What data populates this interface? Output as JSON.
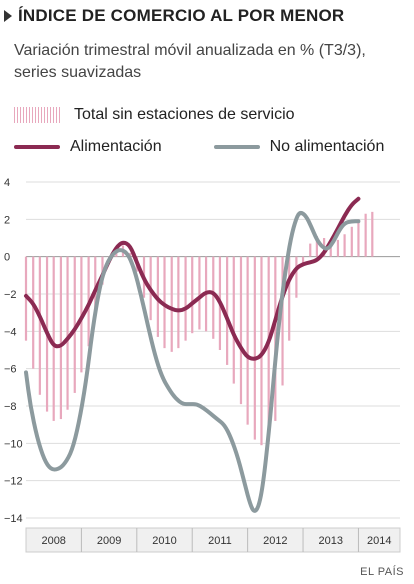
{
  "header": {
    "title": "ÍNDICE DE COMERCIO AL POR MENOR",
    "subtitle": "Variación trimestral móvil anualizada en % (T3/3), series suavizadas"
  },
  "legend": {
    "bars_label": "Total sin estaciones de servicio",
    "series1_label": "Alimentación",
    "series2_label": "No alimentación"
  },
  "source": "EL PAÍS",
  "colors": {
    "bars": "#e8a8bd",
    "alimentacion": "#8b2a52",
    "no_alimentacion": "#8c9a9e",
    "grid": "#dddddd",
    "axis_band": "#f0f0f0"
  },
  "chart_data": {
    "type": "line",
    "ylim": [
      -14,
      4
    ],
    "yticks": [
      4,
      2,
      0,
      -2,
      -4,
      -6,
      -8,
      -10,
      -12,
      -14
    ],
    "x_categories": [
      "2008",
      "2009",
      "2010",
      "2011",
      "2012",
      "2013",
      "2014"
    ],
    "xlim": [
      2008.0,
      2014.75
    ],
    "bars": {
      "name": "Total sin estaciones de servicio",
      "points": [
        [
          2008.0,
          -4.5
        ],
        [
          2008.13,
          -6.0
        ],
        [
          2008.25,
          -7.4
        ],
        [
          2008.38,
          -8.3
        ],
        [
          2008.5,
          -8.8
        ],
        [
          2008.63,
          -8.7
        ],
        [
          2008.75,
          -8.2
        ],
        [
          2008.88,
          -7.3
        ],
        [
          2009.0,
          -6.2
        ],
        [
          2009.13,
          -4.8
        ],
        [
          2009.25,
          -3.2
        ],
        [
          2009.38,
          -1.5
        ],
        [
          2009.5,
          -0.3
        ],
        [
          2009.63,
          0.4
        ],
        [
          2009.75,
          0.6
        ],
        [
          2009.88,
          0.2
        ],
        [
          2010.0,
          -0.8
        ],
        [
          2010.13,
          -2.2
        ],
        [
          2010.25,
          -3.4
        ],
        [
          2010.38,
          -4.3
        ],
        [
          2010.5,
          -4.9
        ],
        [
          2010.63,
          -5.1
        ],
        [
          2010.75,
          -4.9
        ],
        [
          2010.88,
          -4.5
        ],
        [
          2011.0,
          -4.1
        ],
        [
          2011.13,
          -3.9
        ],
        [
          2011.25,
          -4.0
        ],
        [
          2011.38,
          -4.4
        ],
        [
          2011.5,
          -5.0
        ],
        [
          2011.63,
          -5.8
        ],
        [
          2011.75,
          -6.8
        ],
        [
          2011.88,
          -7.9
        ],
        [
          2012.0,
          -9.0
        ],
        [
          2012.13,
          -9.8
        ],
        [
          2012.25,
          -10.1
        ],
        [
          2012.38,
          -9.9
        ],
        [
          2012.5,
          -8.8
        ],
        [
          2012.63,
          -6.9
        ],
        [
          2012.75,
          -4.5
        ],
        [
          2012.88,
          -2.2
        ],
        [
          2013.0,
          -0.4
        ],
        [
          2013.13,
          0.7
        ],
        [
          2013.25,
          1.1
        ],
        [
          2013.38,
          1.0
        ],
        [
          2013.5,
          0.8
        ],
        [
          2013.63,
          0.9
        ],
        [
          2013.75,
          1.2
        ],
        [
          2013.88,
          1.6
        ],
        [
          2014.0,
          2.0
        ],
        [
          2014.13,
          2.3
        ],
        [
          2014.25,
          2.4
        ]
      ]
    },
    "series": [
      {
        "name": "Alimentación",
        "points": [
          [
            2008.0,
            -2.1
          ],
          [
            2008.13,
            -2.5
          ],
          [
            2008.25,
            -3.2
          ],
          [
            2008.38,
            -4.1
          ],
          [
            2008.5,
            -4.8
          ],
          [
            2008.63,
            -4.8
          ],
          [
            2008.75,
            -4.4
          ],
          [
            2008.88,
            -3.9
          ],
          [
            2009.0,
            -3.3
          ],
          [
            2009.13,
            -2.6
          ],
          [
            2009.25,
            -1.8
          ],
          [
            2009.38,
            -1.0
          ],
          [
            2009.5,
            -0.2
          ],
          [
            2009.63,
            0.5
          ],
          [
            2009.75,
            0.8
          ],
          [
            2009.88,
            0.6
          ],
          [
            2010.0,
            -0.3
          ],
          [
            2010.13,
            -1.2
          ],
          [
            2010.25,
            -1.8
          ],
          [
            2010.38,
            -2.3
          ],
          [
            2010.5,
            -2.6
          ],
          [
            2010.63,
            -2.8
          ],
          [
            2010.75,
            -2.9
          ],
          [
            2010.88,
            -2.8
          ],
          [
            2011.0,
            -2.5
          ],
          [
            2011.13,
            -2.2
          ],
          [
            2011.25,
            -1.9
          ],
          [
            2011.38,
            -1.9
          ],
          [
            2011.5,
            -2.4
          ],
          [
            2011.63,
            -3.3
          ],
          [
            2011.75,
            -4.2
          ],
          [
            2011.88,
            -4.9
          ],
          [
            2012.0,
            -5.4
          ],
          [
            2012.13,
            -5.5
          ],
          [
            2012.25,
            -5.3
          ],
          [
            2012.38,
            -4.6
          ],
          [
            2012.5,
            -3.4
          ],
          [
            2012.63,
            -2.1
          ],
          [
            2012.75,
            -1.2
          ],
          [
            2012.88,
            -0.6
          ],
          [
            2013.0,
            -0.4
          ],
          [
            2013.13,
            -0.3
          ],
          [
            2013.25,
            -0.2
          ],
          [
            2013.38,
            0.2
          ],
          [
            2013.5,
            0.8
          ],
          [
            2013.63,
            1.5
          ],
          [
            2013.75,
            2.2
          ],
          [
            2013.88,
            2.8
          ],
          [
            2014.0,
            3.1
          ]
        ]
      },
      {
        "name": "No alimentación",
        "points": [
          [
            2008.0,
            -6.2
          ],
          [
            2008.08,
            -8.0
          ],
          [
            2008.2,
            -9.7
          ],
          [
            2008.33,
            -10.9
          ],
          [
            2008.45,
            -11.4
          ],
          [
            2008.58,
            -11.4
          ],
          [
            2008.7,
            -11.1
          ],
          [
            2008.83,
            -10.4
          ],
          [
            2008.95,
            -9.0
          ],
          [
            2009.08,
            -6.8
          ],
          [
            2009.2,
            -3.9
          ],
          [
            2009.33,
            -1.6
          ],
          [
            2009.45,
            -0.4
          ],
          [
            2009.58,
            0.2
          ],
          [
            2009.7,
            0.4
          ],
          [
            2009.83,
            0.2
          ],
          [
            2009.95,
            -0.6
          ],
          [
            2010.08,
            -2.1
          ],
          [
            2010.2,
            -3.7
          ],
          [
            2010.33,
            -5.3
          ],
          [
            2010.45,
            -6.4
          ],
          [
            2010.58,
            -7.1
          ],
          [
            2010.7,
            -7.6
          ],
          [
            2010.83,
            -7.9
          ],
          [
            2010.95,
            -7.9
          ],
          [
            2011.08,
            -7.9
          ],
          [
            2011.2,
            -8.1
          ],
          [
            2011.33,
            -8.4
          ],
          [
            2011.45,
            -8.7
          ],
          [
            2011.58,
            -9.0
          ],
          [
            2011.7,
            -9.7
          ],
          [
            2011.83,
            -10.8
          ],
          [
            2011.95,
            -12.2
          ],
          [
            2012.05,
            -13.3
          ],
          [
            2012.12,
            -13.7
          ],
          [
            2012.2,
            -13.4
          ],
          [
            2012.28,
            -12.2
          ],
          [
            2012.38,
            -9.5
          ],
          [
            2012.48,
            -6.2
          ],
          [
            2012.58,
            -3.1
          ],
          [
            2012.68,
            -0.8
          ],
          [
            2012.78,
            1.0
          ],
          [
            2012.88,
            2.1
          ],
          [
            2012.95,
            2.4
          ],
          [
            2013.05,
            2.2
          ],
          [
            2013.15,
            1.6
          ],
          [
            2013.25,
            0.9
          ],
          [
            2013.35,
            0.5
          ],
          [
            2013.45,
            0.4
          ],
          [
            2013.55,
            0.8
          ],
          [
            2013.65,
            1.4
          ],
          [
            2013.75,
            1.8
          ],
          [
            2013.88,
            1.9
          ],
          [
            2014.0,
            1.9
          ]
        ]
      }
    ]
  }
}
